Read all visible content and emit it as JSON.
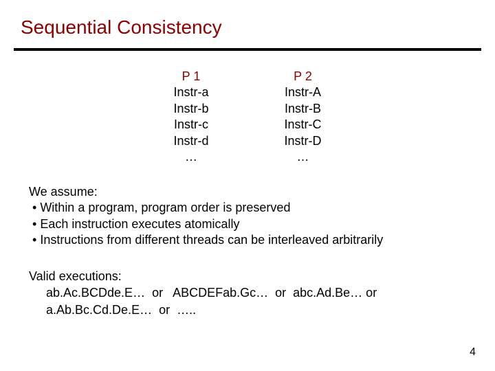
{
  "title": "Sequential Consistency",
  "colors": {
    "title_color": "#8b0000",
    "text_color": "#000000",
    "rule_color": "#000000",
    "background": "#ffffff"
  },
  "typography": {
    "title_fontsize_pt": 28,
    "body_fontsize_pt": 18,
    "font_family": "Arial"
  },
  "programs": {
    "p1": {
      "head": "P 1",
      "instrs": [
        "Instr-a",
        "Instr-b",
        "Instr-c",
        "Instr-d",
        "…"
      ]
    },
    "p2": {
      "head": "P 2",
      "instrs": [
        "Instr-A",
        "Instr-B",
        "Instr-C",
        "Instr-D",
        "…"
      ]
    }
  },
  "assume": {
    "lead": "We assume:",
    "bullets": [
      "Within a program, program order is preserved",
      "Each instruction executes atomically",
      "Instructions from different threads can be interleaved arbitrarily"
    ]
  },
  "valid": {
    "lead": "Valid executions:",
    "row1": "     ab.Ac.BCDde.E…  or   ABCDEFab.Gc…  or  abc.Ad.Be… or",
    "row2": "     a.Ab.Bc.Cd.De.E…  or  ….."
  },
  "page_number": "4"
}
